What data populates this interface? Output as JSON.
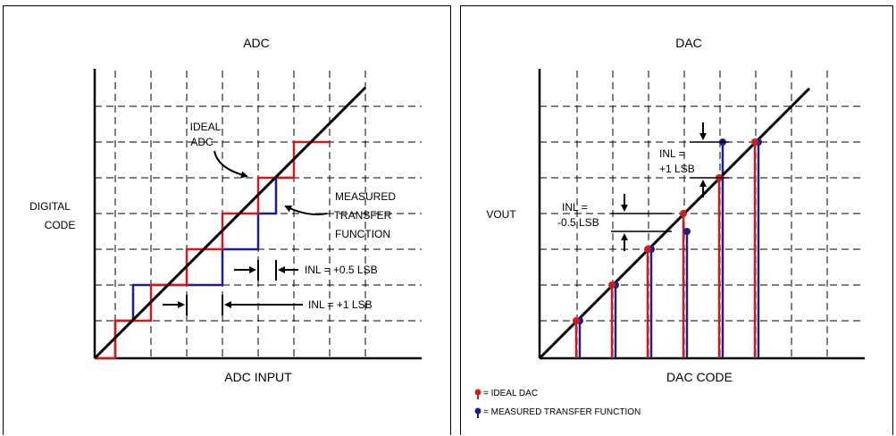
{
  "adc": {
    "title": "ADC",
    "y_label_line1": "DIGITAL",
    "y_label_line2": "CODE",
    "x_label": "ADC INPUT",
    "ideal_label_line1": "IDEAL",
    "ideal_label_line2": "ADC",
    "measured_label_line1": "MEASURED",
    "measured_label_line2": "TRANSFER",
    "measured_label_line3": "FUNCTION",
    "inl_half_label": "INL = +0.5 LSB",
    "inl_one_label": "INL = +1 LSB"
  },
  "dac": {
    "title": "DAC",
    "y_label": "VOUT",
    "x_label": "DAC CODE",
    "inl_top_line1": "INL =",
    "inl_top_line2": "+1 LSB",
    "inl_mid_line1": "INL =",
    "inl_mid_line2": "-0.5 LSB",
    "legend_ideal": "= IDEAL DAC",
    "legend_measured": "= MEASURED TRANSFER FUNCTION"
  },
  "colors": {
    "ideal": "#d11a1a",
    "measured": "#1a1f8c",
    "line": "#000000"
  }
}
